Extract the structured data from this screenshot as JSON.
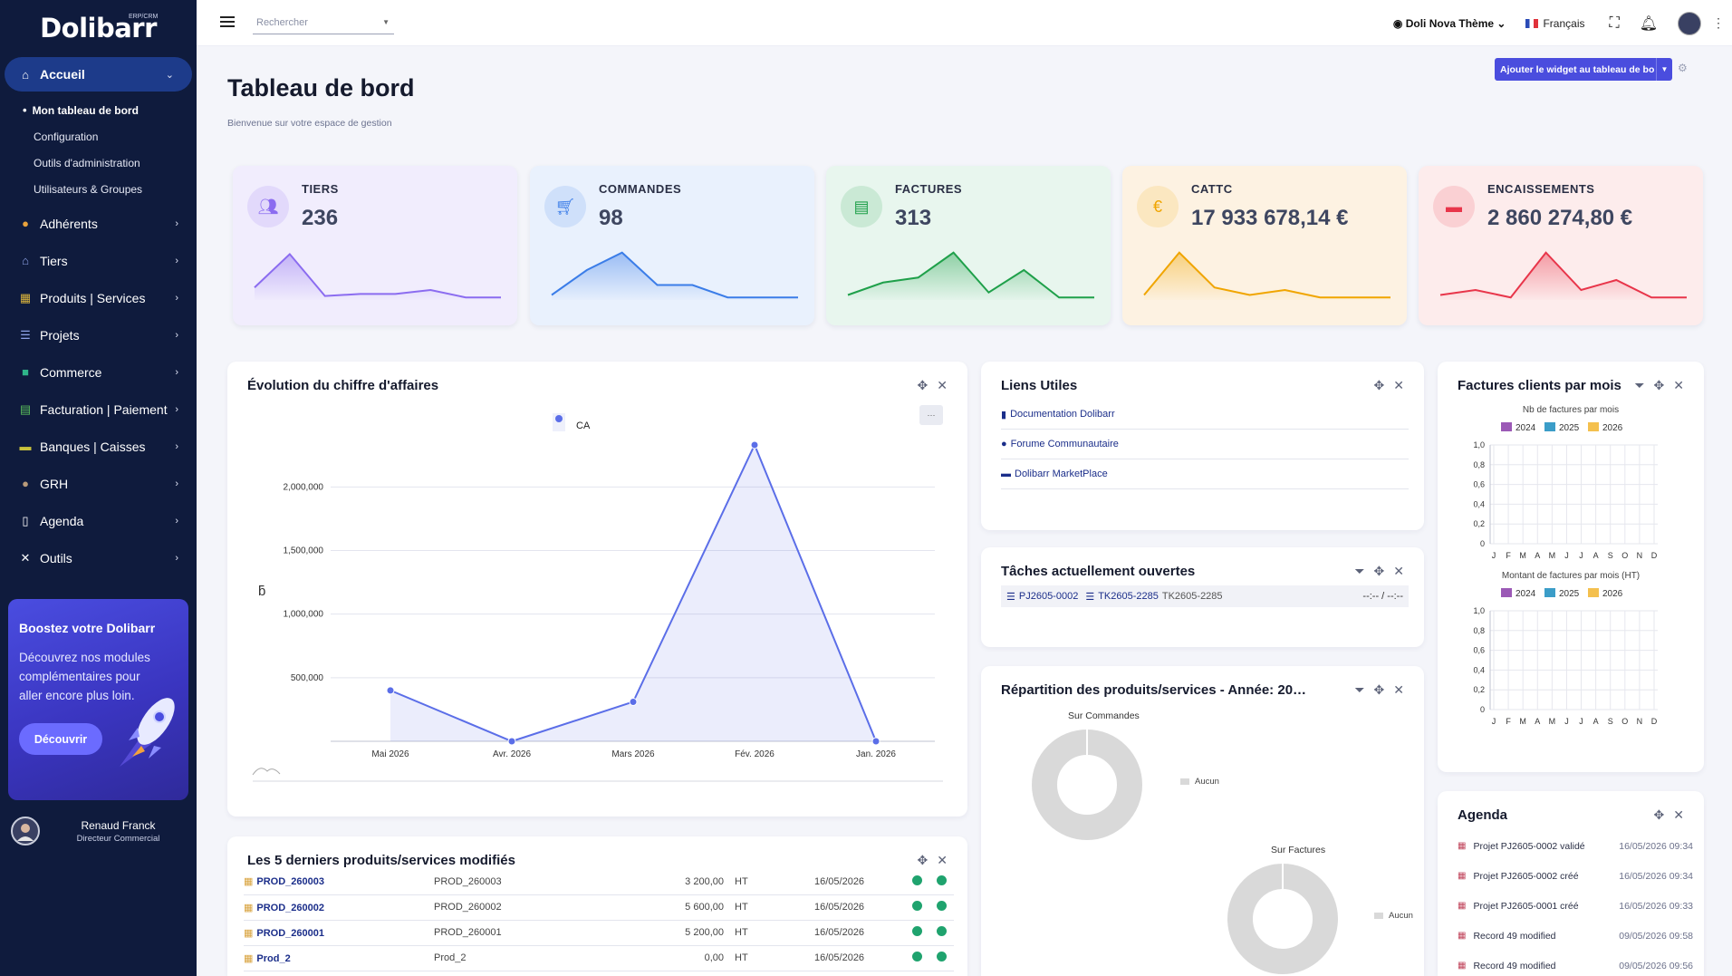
{
  "app": {
    "brand": "Dolibarr",
    "brand_sub": "ERP/CRM"
  },
  "sidebar": {
    "items": [
      {
        "label": "Accueil",
        "icon": "home-icon",
        "active": true
      },
      {
        "label": "Adhérents",
        "icon": "members-icon"
      },
      {
        "label": "Tiers",
        "icon": "building-icon"
      },
      {
        "label": "Produits | Services",
        "icon": "boxes-icon"
      },
      {
        "label": "Projets",
        "icon": "list-icon"
      },
      {
        "label": "Commerce",
        "icon": "briefcase-icon"
      },
      {
        "label": "Facturation | Paiement",
        "icon": "invoice-icon"
      },
      {
        "label": "Banques | Caisses",
        "icon": "bank-icon"
      },
      {
        "label": "GRH",
        "icon": "people-icon"
      },
      {
        "label": "Agenda",
        "icon": "calendar-icon"
      },
      {
        "label": "Outils",
        "icon": "tools-icon"
      }
    ],
    "subitems": [
      "Mon tableau de bord",
      "Configuration",
      "Outils d'administration",
      "Utilisateurs & Groupes"
    ],
    "promo": {
      "title": "Boostez votre Dolibarr",
      "text": "Découvrez nos modules complémentaires pour aller encore plus loin.",
      "button": "Découvrir"
    },
    "user": {
      "name": "Renaud Franck",
      "role": "Directeur Commercial"
    }
  },
  "topbar": {
    "search_placeholder": "Rechercher",
    "theme": "Doli Nova Thème",
    "language": "Français"
  },
  "header": {
    "title": "Tableau de bord",
    "subtitle": "Bienvenue sur votre espace de gestion",
    "add_widget": "Ajouter le widget au tableau de bo"
  },
  "stats": [
    {
      "label": "TIERS",
      "value": "236",
      "color": "#8b6cf0",
      "bg": "#f1edfd",
      "icon": "users-icon"
    },
    {
      "label": "COMMANDES",
      "value": "98",
      "color": "#3b7de8",
      "bg": "#e9f1fd",
      "icon": "cart-icon"
    },
    {
      "label": "FACTURES",
      "value": "313",
      "color": "#1fa04a",
      "bg": "#e8f6ee",
      "icon": "document-icon"
    },
    {
      "label": "CATTC",
      "value": "17 933 678,14 €",
      "color": "#f0a500",
      "bg": "#fdf2e2",
      "icon": "euro-icon"
    },
    {
      "label": "ENCAISSEMENTS",
      "value": "2 860 274,80 €",
      "color": "#e8354a",
      "bg": "#fdecec",
      "icon": "wallet-icon"
    }
  ],
  "ca_panel": {
    "title": "Évolution du chiffre d'affaires",
    "currency_symbol": "ƃ",
    "button": "···"
  },
  "chart_data": {
    "type": "area",
    "title": "",
    "series": [
      {
        "name": "CA",
        "values": [
          400000,
          0,
          310000,
          2330000,
          0
        ]
      }
    ],
    "categories": [
      "Mai 2026",
      "Avr. 2026",
      "Mars 2026",
      "Fév. 2026",
      "Jan. 2026"
    ],
    "yticks": [
      "500,000",
      "1,000,000",
      "1,500,000",
      "2,000,000"
    ],
    "ylim": [
      0,
      2330000
    ],
    "grid": true,
    "legend": "top",
    "color": "#5b6ee8"
  },
  "links_panel": {
    "title": "Liens Utiles",
    "links": [
      {
        "label": "Documentation Dolibarr",
        "icon": "book-icon"
      },
      {
        "label": "Forume Communautaire",
        "icon": "chat-icon"
      },
      {
        "label": "Dolibarr MarketPlace",
        "icon": "store-icon"
      }
    ]
  },
  "tasks_panel": {
    "title": "Tâches actuellement ouvertes",
    "project": "PJ2605-0002",
    "task_ref": "TK2605-2285",
    "task_label": "TK2605-2285",
    "time": "--:-- / --:--"
  },
  "repartition_panel": {
    "title": "Répartition des produits/services - Année: 20…",
    "donut1_title": "Sur Commandes",
    "donut2_title": "Sur Factures",
    "legend": "Aucun"
  },
  "invoices_panel": {
    "title": "Factures clients par mois",
    "chart1_title": "Nb de factures par mois",
    "chart2_title": "Montant de factures par mois (HT)",
    "years": [
      {
        "label": "2024",
        "color": "#9b59b6"
      },
      {
        "label": "2025",
        "color": "#3b9dc8"
      },
      {
        "label": "2026",
        "color": "#f4c04e"
      }
    ],
    "yticks": [
      "0",
      "0,2",
      "0,4",
      "0,6",
      "0,8",
      "1,0"
    ],
    "months": [
      "J",
      "F",
      "M",
      "A",
      "M",
      "J",
      "J",
      "A",
      "S",
      "O",
      "N",
      "D"
    ]
  },
  "products_panel": {
    "title": "Les 5 derniers produits/services modifiés",
    "rows": [
      {
        "ref": "PROD_260003",
        "label": "PROD_260003",
        "price": "3 200,00",
        "tax": "HT",
        "date": "16/05/2026"
      },
      {
        "ref": "PROD_260002",
        "label": "PROD_260002",
        "price": "5 600,00",
        "tax": "HT",
        "date": "16/05/2026"
      },
      {
        "ref": "PROD_260001",
        "label": "PROD_260001",
        "price": "5 200,00",
        "tax": "HT",
        "date": "16/05/2026"
      },
      {
        "ref": "Prod_2",
        "label": "Prod_2",
        "price": "0,00",
        "tax": "HT",
        "date": "16/05/2026"
      }
    ]
  },
  "agenda_panel": {
    "title": "Agenda",
    "events": [
      {
        "label": "Projet PJ2605-0002 validé",
        "date": "16/05/2026 09:34"
      },
      {
        "label": "Projet PJ2605-0002 créé",
        "date": "16/05/2026 09:34"
      },
      {
        "label": "Projet PJ2605-0001 créé",
        "date": "16/05/2026 09:33"
      },
      {
        "label": "Record 49 modified",
        "date": "09/05/2026 09:58"
      },
      {
        "label": "Record 49 modified",
        "date": "09/05/2026 09:56"
      }
    ]
  }
}
